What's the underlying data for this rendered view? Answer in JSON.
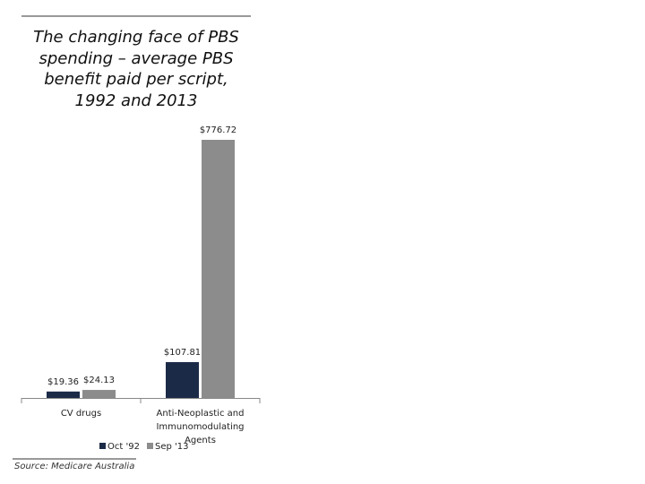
{
  "chart_data": {
    "type": "bar",
    "title": "The changing face of PBS spending – average PBS benefit paid per script, 1992 and 2013",
    "categories": [
      "CV drugs",
      "Anti-Neoplastic and Immunomodulating Agents"
    ],
    "series": [
      {
        "name": "Oct '92",
        "color": "#1b2a47",
        "values": [
          19.36,
          107.81
        ],
        "value_labels": [
          "$19.36",
          "$107.81"
        ]
      },
      {
        "name": "Sep '13",
        "color": "#8c8c8c",
        "values": [
          24.13,
          776.72
        ],
        "value_labels": [
          "$24.13",
          "$776.72"
        ]
      }
    ],
    "source": "Source: Medicare Australia"
  }
}
